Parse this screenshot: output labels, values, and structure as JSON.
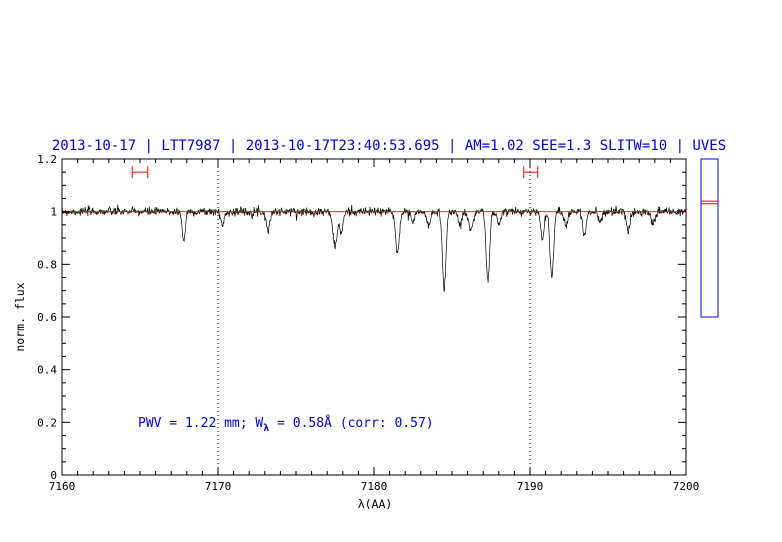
{
  "chart_data": {
    "type": "line",
    "title": "2013-10-17 | LTT7987 | 2013-10-17T23:40:53.695 | AM=1.02  SEE=1.3  SLITW=10 | UVES",
    "xlabel": "λ(AA)",
    "ylabel": "norm. flux",
    "xlim": [
      7160,
      7200
    ],
    "ylim": [
      0,
      1.2
    ],
    "x_ticks": [
      "7160",
      "7170",
      "7180",
      "7190",
      "7200"
    ],
    "y_ticks": [
      "0",
      "0.2",
      "0.4",
      "0.6",
      "0.8",
      "1",
      "1.2"
    ],
    "grid": false,
    "annotation": {
      "prefix": "PWV = 1.22 mm; W",
      "sub": "λ",
      "suffix": " = 0.58Å (corr: 0.57)"
    },
    "reference_lines": {
      "dotted_vertical_x": [
        7170,
        7190
      ],
      "continuum_y": 1.0
    },
    "continuum_windows": [
      {
        "x0": 7164.5,
        "x1": 7165.5,
        "y": 1.15
      },
      {
        "x0": 7189.6,
        "x1": 7190.5,
        "y": 1.15
      }
    ],
    "absorption_lines": [
      {
        "x": 7167.8,
        "depth": 0.11,
        "width": 0.22
      },
      {
        "x": 7170.3,
        "depth": 0.05,
        "width": 0.25
      },
      {
        "x": 7173.2,
        "depth": 0.07,
        "width": 0.25
      },
      {
        "x": 7177.5,
        "depth": 0.13,
        "width": 0.3
      },
      {
        "x": 7177.9,
        "depth": 0.08,
        "width": 0.25
      },
      {
        "x": 7181.5,
        "depth": 0.15,
        "width": 0.28
      },
      {
        "x": 7182.5,
        "depth": 0.04,
        "width": 0.25
      },
      {
        "x": 7183.5,
        "depth": 0.05,
        "width": 0.3
      },
      {
        "x": 7184.5,
        "depth": 0.29,
        "width": 0.25
      },
      {
        "x": 7185.5,
        "depth": 0.05,
        "width": 0.25
      },
      {
        "x": 7186.2,
        "depth": 0.07,
        "width": 0.3
      },
      {
        "x": 7187.3,
        "depth": 0.26,
        "width": 0.25
      },
      {
        "x": 7188.0,
        "depth": 0.05,
        "width": 0.25
      },
      {
        "x": 7190.8,
        "depth": 0.1,
        "width": 0.25
      },
      {
        "x": 7191.4,
        "depth": 0.25,
        "width": 0.25
      },
      {
        "x": 7192.3,
        "depth": 0.05,
        "width": 0.25
      },
      {
        "x": 7193.5,
        "depth": 0.09,
        "width": 0.25
      },
      {
        "x": 7194.5,
        "depth": 0.04,
        "width": 0.25
      },
      {
        "x": 7196.3,
        "depth": 0.07,
        "width": 0.25
      },
      {
        "x": 7197.9,
        "depth": 0.05,
        "width": 0.25
      }
    ],
    "noise_sigma": 0.008,
    "side_panel": {
      "levels": [
        1.03,
        1.04
      ]
    },
    "colors": {
      "spectrum": "#000000",
      "continuum": "#ff0000",
      "windows": "#ff0000",
      "title": "#0000e0",
      "side_panel": "#0000e0"
    }
  }
}
